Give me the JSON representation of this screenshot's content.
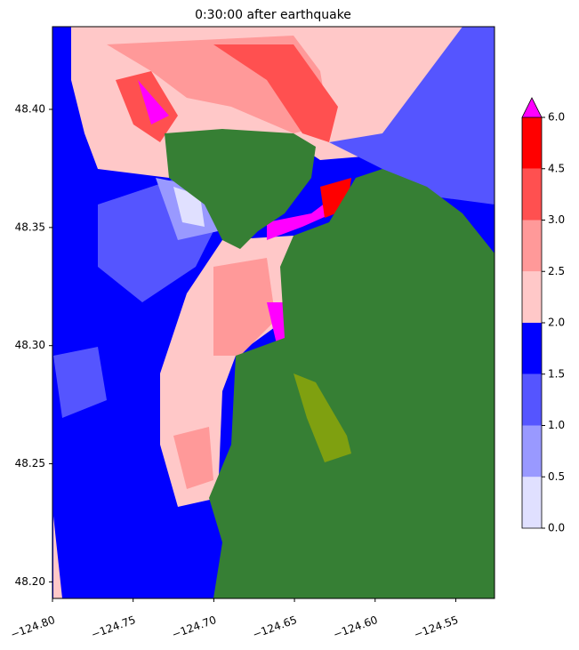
{
  "chart_data": {
    "type": "map",
    "title": "0:30:00 after earthquake",
    "xlim": [
      -124.8,
      -124.526
    ],
    "ylim": [
      48.193,
      48.435
    ],
    "xticks": [
      {
        "value": -124.8,
        "label": "−124.80"
      },
      {
        "value": -124.75,
        "label": "−124.75"
      },
      {
        "value": -124.7,
        "label": "−124.70"
      },
      {
        "value": -124.65,
        "label": "−124.65"
      },
      {
        "value": -124.6,
        "label": "−124.60"
      },
      {
        "value": -124.55,
        "label": "−124.55"
      }
    ],
    "yticks": [
      {
        "value": 48.2,
        "label": "48.20"
      },
      {
        "value": 48.25,
        "label": "48.25"
      },
      {
        "value": 48.3,
        "label": "48.30"
      },
      {
        "value": 48.35,
        "label": "48.35"
      },
      {
        "value": 48.4,
        "label": "48.40"
      }
    ],
    "colorbar": {
      "ticks": [
        {
          "value": 0,
          "label": "0.0"
        },
        {
          "value": 0.5,
          "label": "0.5"
        },
        {
          "value": 1,
          "label": "1.0"
        },
        {
          "value": 1.5,
          "label": "1.5"
        },
        {
          "value": 2,
          "label": "2.0"
        },
        {
          "value": 2.5,
          "label": "2.5"
        },
        {
          "value": 3,
          "label": "3.0"
        },
        {
          "value": 4.5,
          "label": "4.5"
        },
        {
          "value": 6,
          "label": "6.0"
        }
      ],
      "colors": [
        "#e0e0ff",
        "#9999ff",
        "#5555ff",
        "#0000ff",
        "#ffc8c8",
        "#ff9999",
        "#ff5050",
        "#ff0000"
      ],
      "extend_color": "#ff00ff"
    }
  }
}
